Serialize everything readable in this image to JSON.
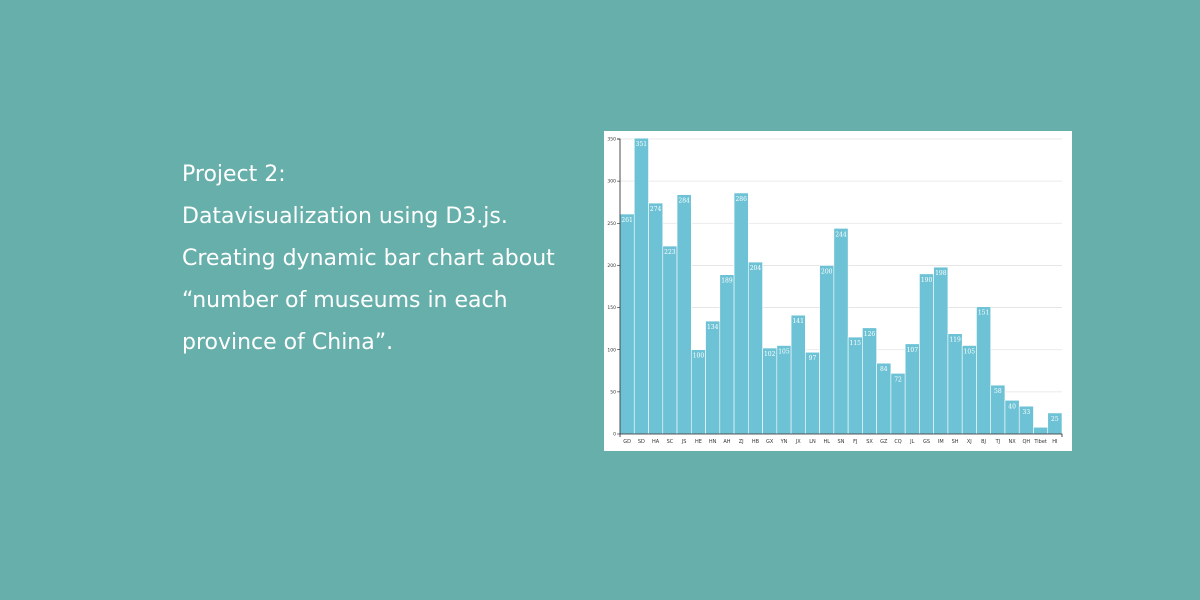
{
  "description": {
    "lines": [
      "Project 2:",
      "Datavisualization using D3.js.",
      "Creating dynamic bar chart about",
      "“number of museums in each",
      "province of China”."
    ]
  },
  "colors": {
    "background": "#67afaa",
    "bar": "#6dc3d5",
    "panel": "#ffffff"
  },
  "chart_data": {
    "type": "bar",
    "title": "",
    "xlabel": "",
    "ylabel": "",
    "ylim": [
      0,
      350
    ],
    "yticks": [
      0,
      50,
      100,
      150,
      200,
      250,
      300,
      350
    ],
    "grid": true,
    "categories": [
      "GD",
      "SD",
      "HA",
      "SC",
      "JS",
      "HE",
      "HN",
      "AH",
      "ZJ",
      "HB",
      "GX",
      "YN",
      "JX",
      "LN",
      "HL",
      "SN",
      "FJ",
      "SX",
      "GZ",
      "CQ",
      "JL",
      "GS",
      "IM",
      "SH",
      "XJ",
      "BJ",
      "TJ",
      "NX",
      "QH",
      "Tibet",
      "HI"
    ],
    "values": [
      261,
      351,
      274,
      223,
      284,
      100,
      134,
      189,
      286,
      204,
      102,
      105,
      141,
      97,
      200,
      244,
      115,
      126,
      84,
      72,
      107,
      190,
      198,
      119,
      105,
      151,
      58,
      40,
      33,
      8,
      25
    ],
    "value_labels": [
      "261",
      "351",
      "274",
      "223",
      "284",
      "100",
      "134",
      "189",
      "286",
      "204",
      "102",
      "105",
      "141",
      "97",
      "200",
      "244",
      "115",
      "126",
      "84",
      "72",
      "107",
      "190",
      "198",
      "119",
      "105",
      "151",
      "58",
      "40",
      "33",
      "",
      "25"
    ]
  }
}
